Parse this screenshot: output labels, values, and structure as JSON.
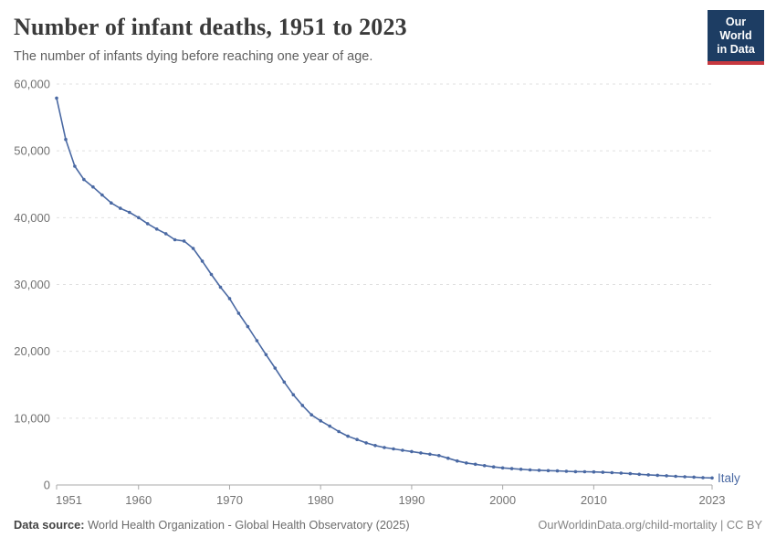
{
  "logo": {
    "line1": "Our World",
    "line2": "in Data",
    "bg": "#1d3d63",
    "accent": "#c7383f"
  },
  "chart_data": {
    "type": "line",
    "title": "Number of infant deaths, 1951 to 2023",
    "subtitle": "The number of infants dying before reaching one year of age.",
    "xlim": [
      1951,
      2023
    ],
    "ylim": [
      0,
      60000
    ],
    "y_ticks": [
      0,
      10000,
      20000,
      30000,
      40000,
      50000,
      60000
    ],
    "x_ticks": [
      1951,
      1960,
      1970,
      1980,
      1990,
      2000,
      2010,
      2023
    ],
    "grid": true,
    "legend_position": "end-of-line-label",
    "grid_color": "#e0e0e0",
    "axis_color": "#a8a8a8",
    "tick_label_color": "#737373",
    "years": [
      1951,
      1952,
      1953,
      1954,
      1955,
      1956,
      1957,
      1958,
      1959,
      1960,
      1961,
      1962,
      1963,
      1964,
      1965,
      1966,
      1967,
      1968,
      1969,
      1970,
      1971,
      1972,
      1973,
      1974,
      1975,
      1976,
      1977,
      1978,
      1979,
      1980,
      1981,
      1982,
      1983,
      1984,
      1985,
      1986,
      1987,
      1988,
      1989,
      1990,
      1991,
      1992,
      1993,
      1994,
      1995,
      1996,
      1997,
      1998,
      1999,
      2000,
      2001,
      2002,
      2003,
      2004,
      2005,
      2006,
      2007,
      2008,
      2009,
      2010,
      2011,
      2012,
      2013,
      2014,
      2015,
      2016,
      2017,
      2018,
      2019,
      2020,
      2021,
      2022,
      2023
    ],
    "series": [
      {
        "name": "Italy",
        "color": "#4a69a3",
        "values": [
          57900,
          51700,
          47700,
          45700,
          44600,
          43400,
          42200,
          41400,
          40800,
          40000,
          39100,
          38300,
          37600,
          36700,
          36500,
          35400,
          33500,
          31500,
          29600,
          27900,
          25700,
          23700,
          21600,
          19500,
          17500,
          15400,
          13500,
          11900,
          10500,
          9600,
          8800,
          8000,
          7300,
          6800,
          6300,
          5900,
          5600,
          5400,
          5200,
          5000,
          4800,
          4600,
          4400,
          4000,
          3600,
          3300,
          3100,
          2900,
          2700,
          2550,
          2450,
          2350,
          2250,
          2200,
          2150,
          2100,
          2050,
          2000,
          1980,
          1950,
          1900,
          1850,
          1780,
          1700,
          1600,
          1520,
          1450,
          1380,
          1300,
          1230,
          1170,
          1100,
          1050
        ]
      }
    ]
  },
  "footer": {
    "source_label": "Data source:",
    "source_text": " World Health Organization - Global Health Observatory (2025)",
    "credit": "OurWorldinData.org/child-mortality | CC BY"
  }
}
